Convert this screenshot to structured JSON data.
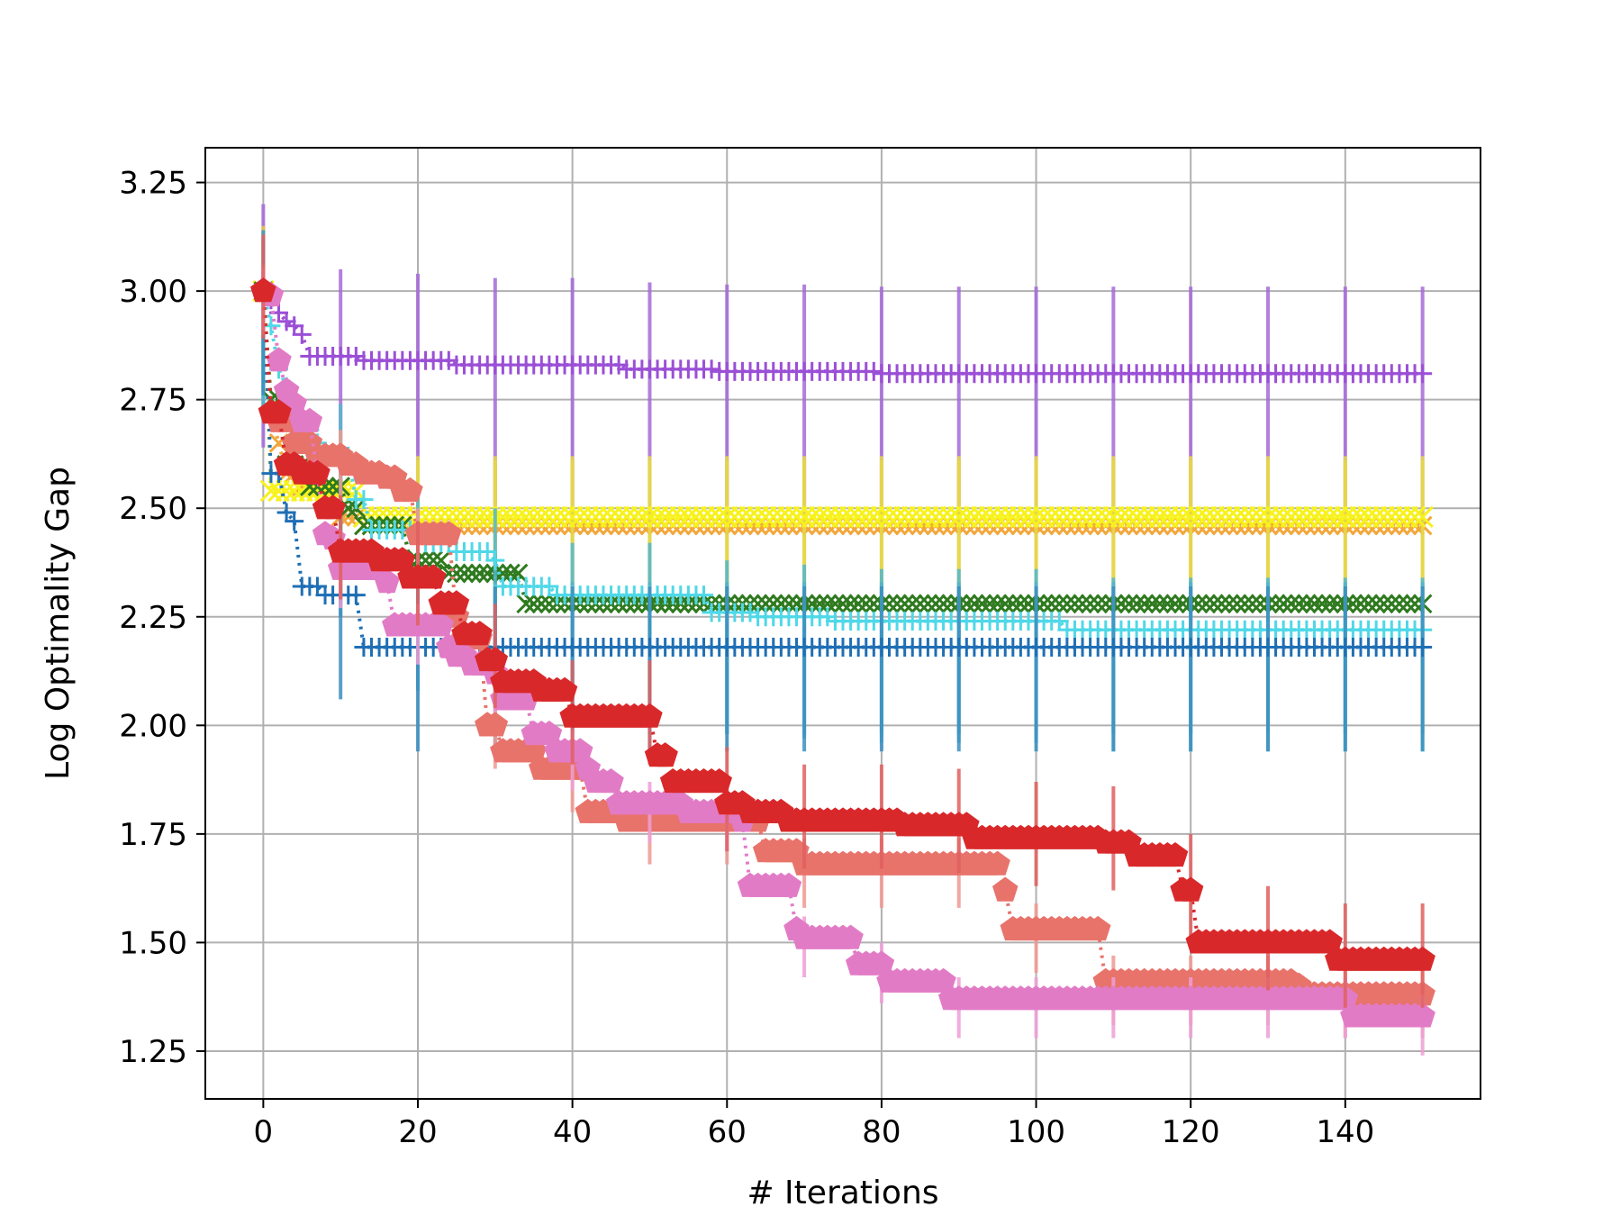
{
  "chart_data": {
    "type": "line",
    "title": "",
    "xlabel": "# Iterations",
    "ylabel": "Log Optimality Gap",
    "xlim": [
      -7.5,
      157.5
    ],
    "ylim": [
      1.14,
      3.33
    ],
    "xticks": [
      0,
      20,
      40,
      60,
      80,
      100,
      120,
      140
    ],
    "yticks": [
      1.25,
      1.5,
      1.75,
      2.0,
      2.25,
      2.5,
      2.75,
      3.0,
      3.25
    ],
    "xtick_labels": [
      "0",
      "20",
      "40",
      "60",
      "80",
      "100",
      "120",
      "140"
    ],
    "ytick_labels": [
      "1.25",
      "1.50",
      "1.75",
      "2.00",
      "2.25",
      "2.50",
      "2.75",
      "3.00",
      "3.25"
    ],
    "grid": true,
    "legend": "none",
    "x_end": 150,
    "errorbar_every": 10,
    "series": [
      {
        "color": "#9b4fd6",
        "marker": "plus",
        "marker_size": 14,
        "steps": [
          [
            0,
            3.0
          ],
          [
            1,
            2.98
          ],
          [
            2,
            2.95
          ],
          [
            3,
            2.93
          ],
          [
            4,
            2.92
          ],
          [
            5,
            2.9
          ],
          [
            6,
            2.85
          ],
          [
            13,
            2.84
          ],
          [
            25,
            2.83
          ],
          [
            47,
            2.82
          ],
          [
            59,
            2.815
          ],
          [
            80,
            2.81
          ]
        ],
        "err_low": 0.36,
        "err_high": 0.2,
        "err_color": "#a56ad8"
      },
      {
        "color": "#f2a73b",
        "marker": "x",
        "marker_size": 14,
        "steps": [
          [
            0,
            3.0
          ],
          [
            1,
            2.72
          ],
          [
            2,
            2.65
          ],
          [
            3,
            2.58
          ],
          [
            5,
            2.55
          ],
          [
            8,
            2.5
          ],
          [
            10,
            2.48
          ],
          [
            13,
            2.46
          ]
        ],
        "err_low": 0.2,
        "err_high": 0.15,
        "err_color": "#e5c84a"
      },
      {
        "color": "#f7f21c",
        "marker": "x",
        "marker_size": 16,
        "steps": [
          [
            0,
            3.0
          ],
          [
            1,
            2.54
          ],
          [
            13,
            2.48
          ]
        ],
        "err_low": 0.2,
        "err_high": 0.14,
        "err_color": "#e6d94a"
      },
      {
        "color": "#2f7a1f",
        "marker": "x",
        "marker_size": 14,
        "steps": [
          [
            0,
            3.0
          ],
          [
            1,
            2.75
          ],
          [
            3,
            2.6
          ],
          [
            6,
            2.55
          ],
          [
            11,
            2.5
          ],
          [
            13,
            2.46
          ],
          [
            19,
            2.38
          ],
          [
            24,
            2.35
          ],
          [
            34,
            2.28
          ]
        ],
        "err_low": 0.3,
        "err_high": 0.05,
        "err_color": "#4aa0b8"
      },
      {
        "color": "#4fd8e8",
        "marker": "plus",
        "marker_size": 14,
        "steps": [
          [
            0,
            3.0
          ],
          [
            1,
            2.92
          ],
          [
            2,
            2.82
          ],
          [
            3,
            2.78
          ],
          [
            4,
            2.68
          ],
          [
            7,
            2.65
          ],
          [
            8,
            2.62
          ],
          [
            12,
            2.52
          ],
          [
            14,
            2.45
          ],
          [
            20,
            2.42
          ],
          [
            25,
            2.4
          ],
          [
            30,
            2.38
          ],
          [
            31,
            2.32
          ],
          [
            38,
            2.3
          ],
          [
            58,
            2.26
          ],
          [
            64,
            2.25
          ],
          [
            74,
            2.24
          ],
          [
            104,
            2.22
          ]
        ],
        "err_low": 0.28,
        "err_high": 0.12,
        "err_color": "#52b8cc"
      },
      {
        "color": "#1f6fb5",
        "marker": "plus",
        "marker_size": 14,
        "steps": [
          [
            0,
            3.0
          ],
          [
            1,
            2.58
          ],
          [
            3,
            2.49
          ],
          [
            4,
            2.47
          ],
          [
            5,
            2.32
          ],
          [
            8,
            2.3
          ],
          [
            13,
            2.18
          ]
        ],
        "err_low": 0.24,
        "err_high": 0.14,
        "err_color": "#3b8fc0"
      },
      {
        "color": "#e8736b",
        "marker": "pentagon",
        "marker_size": 15,
        "steps": [
          [
            0,
            3.0
          ],
          [
            1,
            2.72
          ],
          [
            2,
            2.7
          ],
          [
            4,
            2.65
          ],
          [
            7,
            2.62
          ],
          [
            11,
            2.6
          ],
          [
            13,
            2.58
          ],
          [
            16,
            2.57
          ],
          [
            18,
            2.54
          ],
          [
            20,
            2.44
          ],
          [
            25,
            2.25
          ],
          [
            26,
            2.2
          ],
          [
            29,
            2.0
          ],
          [
            31,
            1.94
          ],
          [
            36,
            1.9
          ],
          [
            42,
            1.8
          ],
          [
            47,
            1.78
          ],
          [
            65,
            1.71
          ],
          [
            70,
            1.68
          ],
          [
            96,
            1.62
          ],
          [
            97,
            1.53
          ],
          [
            109,
            1.41
          ],
          [
            134,
            1.4
          ],
          [
            135,
            1.38
          ]
        ],
        "err_low": 0.1,
        "err_high": 0.06,
        "err_color": "#ef9a93"
      },
      {
        "color": "#e27bc6",
        "marker": "pentagon",
        "marker_size": 15,
        "steps": [
          [
            0,
            3.0
          ],
          [
            1,
            2.99
          ],
          [
            2,
            2.84
          ],
          [
            3,
            2.77
          ],
          [
            4,
            2.74
          ],
          [
            5,
            2.7
          ],
          [
            7,
            2.58
          ],
          [
            8,
            2.44
          ],
          [
            9,
            2.43
          ],
          [
            10,
            2.36
          ],
          [
            16,
            2.33
          ],
          [
            17,
            2.23
          ],
          [
            24,
            2.18
          ],
          [
            25,
            2.16
          ],
          [
            27,
            2.14
          ],
          [
            30,
            2.12
          ],
          [
            31,
            2.06
          ],
          [
            35,
            1.98
          ],
          [
            38,
            1.94
          ],
          [
            42,
            1.9
          ],
          [
            43,
            1.87
          ],
          [
            46,
            1.82
          ],
          [
            55,
            1.8
          ],
          [
            62,
            1.78
          ],
          [
            63,
            1.63
          ],
          [
            69,
            1.53
          ],
          [
            70,
            1.51
          ],
          [
            77,
            1.45
          ],
          [
            81,
            1.41
          ],
          [
            89,
            1.37
          ],
          [
            141,
            1.33
          ]
        ],
        "err_low": 0.09,
        "err_high": 0.05,
        "err_color": "#ee9fd7"
      },
      {
        "color": "#d9282a",
        "marker": "pentagon",
        "marker_size": 15,
        "steps": [
          [
            0,
            3.0
          ],
          [
            1,
            2.72
          ],
          [
            3,
            2.6
          ],
          [
            5,
            2.58
          ],
          [
            8,
            2.5
          ],
          [
            10,
            2.4
          ],
          [
            15,
            2.38
          ],
          [
            19,
            2.34
          ],
          [
            23,
            2.28
          ],
          [
            26,
            2.21
          ],
          [
            29,
            2.15
          ],
          [
            31,
            2.1
          ],
          [
            36,
            2.08
          ],
          [
            40,
            2.02
          ],
          [
            51,
            1.93
          ],
          [
            53,
            1.87
          ],
          [
            60,
            1.82
          ],
          [
            63,
            1.8
          ],
          [
            68,
            1.78
          ],
          [
            83,
            1.77
          ],
          [
            92,
            1.74
          ],
          [
            109,
            1.73
          ],
          [
            113,
            1.7
          ],
          [
            119,
            1.62
          ],
          [
            121,
            1.5
          ],
          [
            139,
            1.46
          ]
        ],
        "err_low": 0.11,
        "err_high": 0.13,
        "err_color": "#e06060"
      }
    ]
  }
}
